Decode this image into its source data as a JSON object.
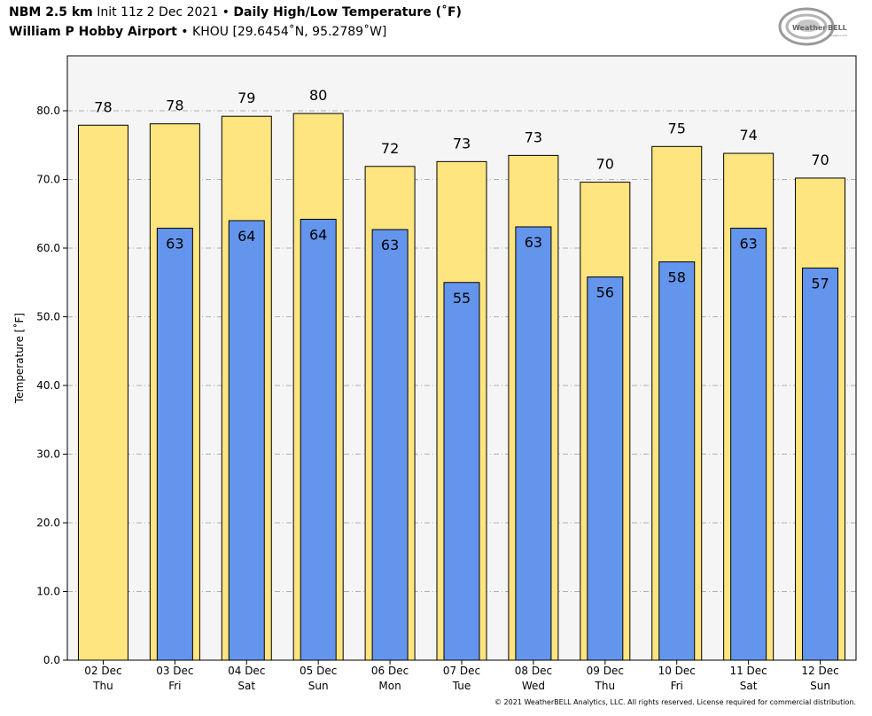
{
  "header": {
    "model": "NBM 2.5 km",
    "init": "Init 11z 2 Dec 2021",
    "bullet": "•",
    "product": "Daily High/Low Temperature (˚F)",
    "station": "William P Hobby Airport",
    "station_info": "KHOU [29.6454˚N, 95.2789˚W]"
  },
  "logo": {
    "text_weather": "Weather",
    "text_bell": "BELL",
    "sub": "Analytics LLC"
  },
  "footer": "© 2021 WeatherBELL Analytics, LLC. All rights reserved. License required for commercial distribution.",
  "chart_data": {
    "type": "bar",
    "ylabel": "Temperature [˚F]",
    "ylim": [
      0,
      88
    ],
    "yticks": [
      "0.0",
      "10.0",
      "20.0",
      "30.0",
      "40.0",
      "50.0",
      "60.0",
      "70.0",
      "80.0"
    ],
    "categories": [
      [
        "02 Dec",
        "Thu"
      ],
      [
        "03 Dec",
        "Fri"
      ],
      [
        "04 Dec",
        "Sat"
      ],
      [
        "05 Dec",
        "Sun"
      ],
      [
        "06 Dec",
        "Mon"
      ],
      [
        "07 Dec",
        "Tue"
      ],
      [
        "08 Dec",
        "Wed"
      ],
      [
        "09 Dec",
        "Thu"
      ],
      [
        "10 Dec",
        "Fri"
      ],
      [
        "11 Dec",
        "Sat"
      ],
      [
        "12 Dec",
        "Sun"
      ]
    ],
    "series": [
      {
        "values": [
          77.9,
          78.1,
          79.2,
          79.6,
          71.9,
          72.6,
          73.5,
          69.6,
          74.8,
          73.8,
          70.2
        ],
        "labels": [
          "78",
          "78",
          "79",
          "80",
          "72",
          "73",
          "73",
          "70",
          "75",
          "74",
          "70"
        ],
        "color": "#ffe57f"
      },
      {
        "values": [
          null,
          62.9,
          64.0,
          64.2,
          62.7,
          55.0,
          63.1,
          55.8,
          58.0,
          62.9,
          57.1
        ],
        "labels": [
          "",
          "63",
          "64",
          "64",
          "63",
          "55",
          "63",
          "56",
          "58",
          "63",
          "57"
        ],
        "color": "#6495ed"
      }
    ],
    "grid": true,
    "plot_background": "#f5f5f5"
  }
}
